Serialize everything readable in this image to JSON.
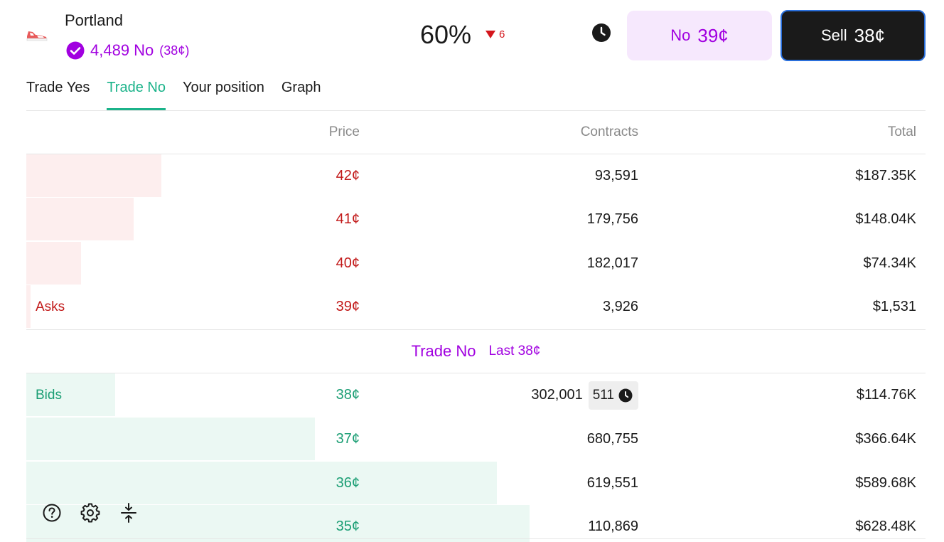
{
  "market": {
    "name": "Portland",
    "icon": "sneaker-icon",
    "position_count": "4,489 No",
    "position_price": "(38¢)"
  },
  "stats": {
    "chance": "60%",
    "change": "6",
    "change_direction": "down"
  },
  "buttons": {
    "no_label": "No",
    "no_value": "39¢",
    "sell_label": "Sell",
    "sell_value": "38¢"
  },
  "tabs": [
    {
      "label": "Trade Yes",
      "active": false
    },
    {
      "label": "Trade No",
      "active": true
    },
    {
      "label": "Your position",
      "active": false
    },
    {
      "label": "Graph",
      "active": false
    }
  ],
  "table": {
    "headers": {
      "price": "Price",
      "contracts": "Contracts",
      "total": "Total"
    },
    "asks_label": "Asks",
    "bids_label": "Bids",
    "asks": [
      {
        "price": "42¢",
        "contracts": "93,591",
        "total": "$187.35K"
      },
      {
        "price": "41¢",
        "contracts": "179,756",
        "total": "$148.04K"
      },
      {
        "price": "40¢",
        "contracts": "182,017",
        "total": "$74.34K"
      },
      {
        "price": "39¢",
        "contracts": "3,926",
        "total": "$1,531"
      }
    ],
    "middle": {
      "title": "Trade No",
      "last": "Last 38¢"
    },
    "bids": [
      {
        "price": "38¢",
        "contracts": "302,001",
        "queue": "511",
        "total": "$114.76K"
      },
      {
        "price": "37¢",
        "contracts": "680,755",
        "total": "$366.64K"
      },
      {
        "price": "36¢",
        "contracts": "619,551",
        "total": "$589.68K"
      },
      {
        "price": "35¢",
        "contracts": "110,869",
        "total": "$628.48K"
      }
    ]
  },
  "colors": {
    "accent_purple": "#a100e0",
    "ask_red": "#c21a1a",
    "bid_green": "#1b9e74",
    "tab_active": "#1bb38a"
  },
  "tools": [
    "help-icon",
    "settings-icon",
    "collapse-icon"
  ]
}
